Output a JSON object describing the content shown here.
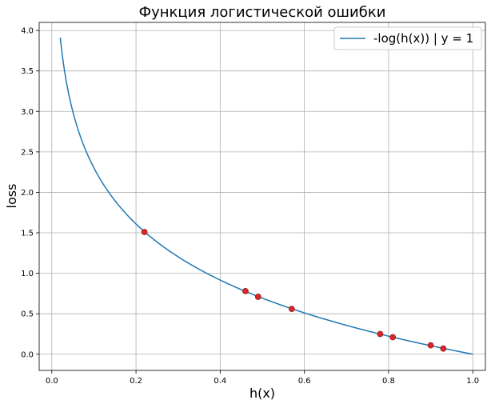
{
  "chart_data": {
    "type": "line",
    "title": "Функция логистической ошибки",
    "xlabel": "h(x)",
    "ylabel": "loss",
    "xlim": [
      -0.03,
      1.03
    ],
    "ylim": [
      -0.2,
      4.1
    ],
    "xticks": [
      "0.0",
      "0.2",
      "0.4",
      "0.6",
      "0.8",
      "1.0"
    ],
    "yticks": [
      "0.0",
      "0.5",
      "1.0",
      "1.5",
      "2.0",
      "2.5",
      "3.0",
      "3.5",
      "4.0"
    ],
    "grid": true,
    "legend_position": "top-right",
    "series": [
      {
        "name": "-log(h(x)) | y = 1",
        "color": "#1f77b4",
        "function": "-log(x)",
        "x_range": [
          0.02,
          1.0
        ]
      }
    ],
    "points": {
      "color": "#d62728",
      "x": [
        0.22,
        0.46,
        0.49,
        0.57,
        0.78,
        0.81,
        0.9,
        0.93
      ],
      "y": [
        1.51,
        0.78,
        0.71,
        0.56,
        0.25,
        0.21,
        0.11,
        0.07
      ]
    }
  }
}
